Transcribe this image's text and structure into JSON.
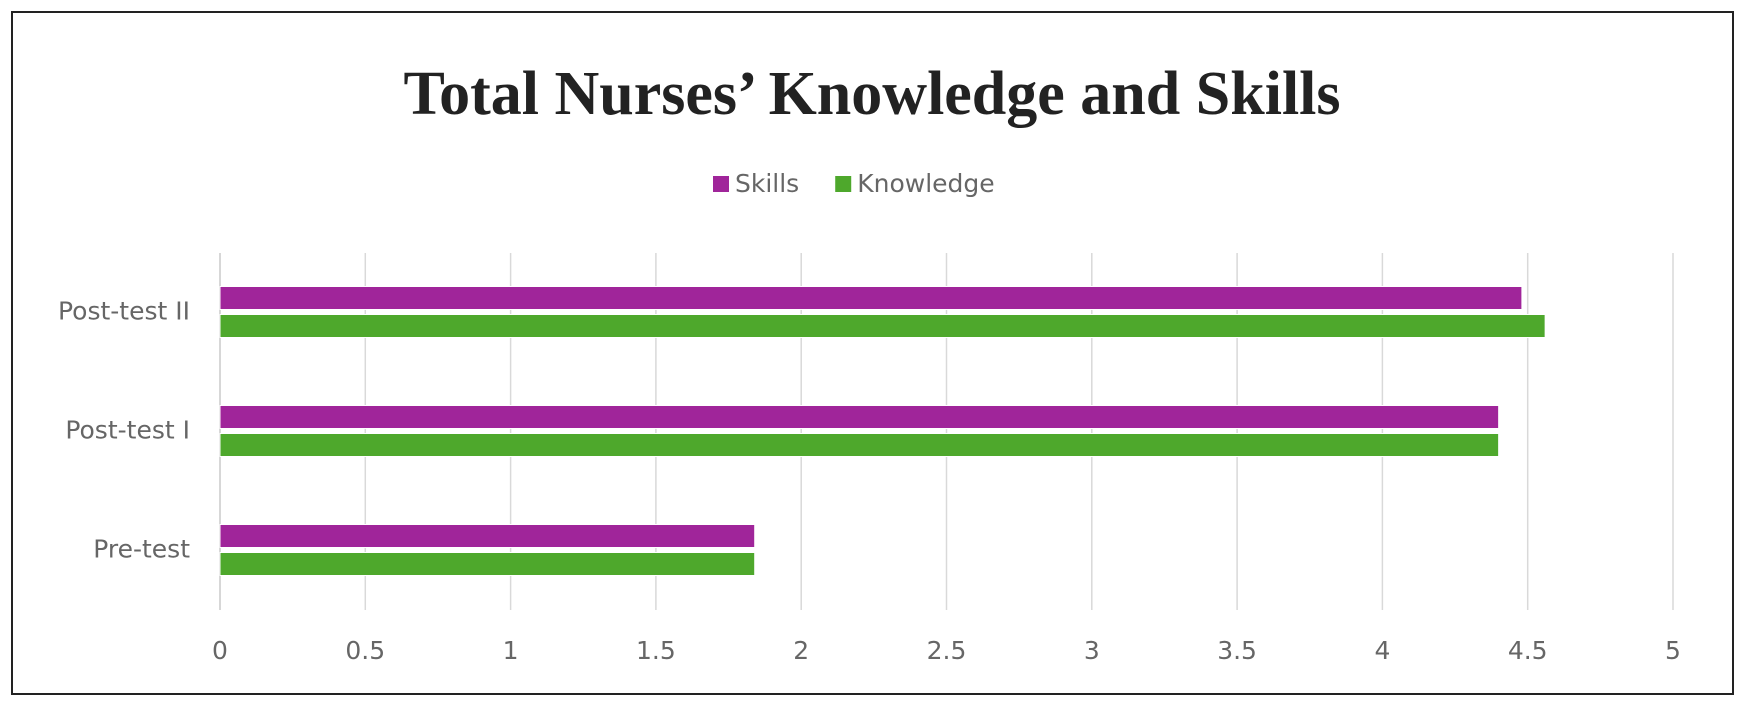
{
  "chart_data": {
    "type": "hbar",
    "title": "Total Nurses’ Knowledge and Skills",
    "categories": [
      "Pre-test",
      "Post-test I",
      "Post-test II"
    ],
    "series": [
      {
        "name": "Skills",
        "color": "#a0259a",
        "values": [
          1.84,
          4.4,
          4.48
        ]
      },
      {
        "name": "Knowledge",
        "color": "#4ea82c",
        "values": [
          1.84,
          4.4,
          4.56
        ]
      }
    ],
    "xlim": [
      0,
      5
    ],
    "xticks": [
      0,
      0.5,
      1,
      1.5,
      2,
      2.5,
      3,
      3.5,
      4,
      4.5,
      5
    ],
    "grid": true,
    "legend": "top"
  }
}
